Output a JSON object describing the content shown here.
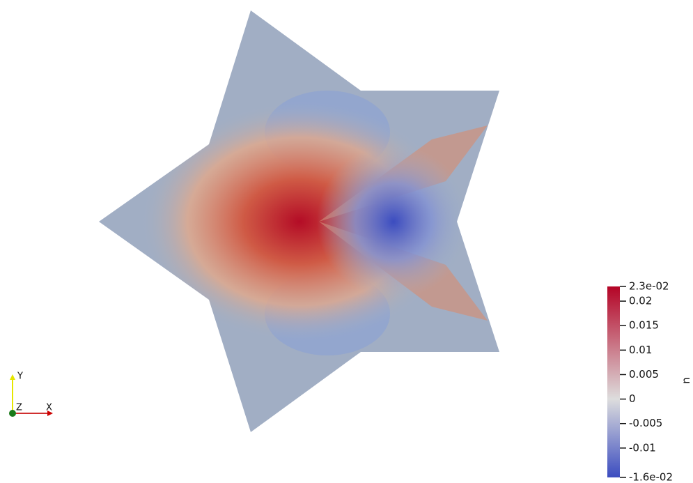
{
  "view": {
    "triad": {
      "y": "Y",
      "z": "Z",
      "x": "X"
    }
  },
  "colorbar": {
    "title": "u",
    "range": [
      -0.016,
      0.023
    ],
    "ticks": [
      {
        "value": 0.023,
        "label": "2.3e-02"
      },
      0.02,
      0.015,
      0.01,
      0.005,
      0,
      -0.005,
      -0.01,
      {
        "value": -0.016,
        "label": "-1.6e-02"
      }
    ],
    "colors": [
      "#3b4cc0",
      "#dddddd",
      "#b40426"
    ]
  }
}
